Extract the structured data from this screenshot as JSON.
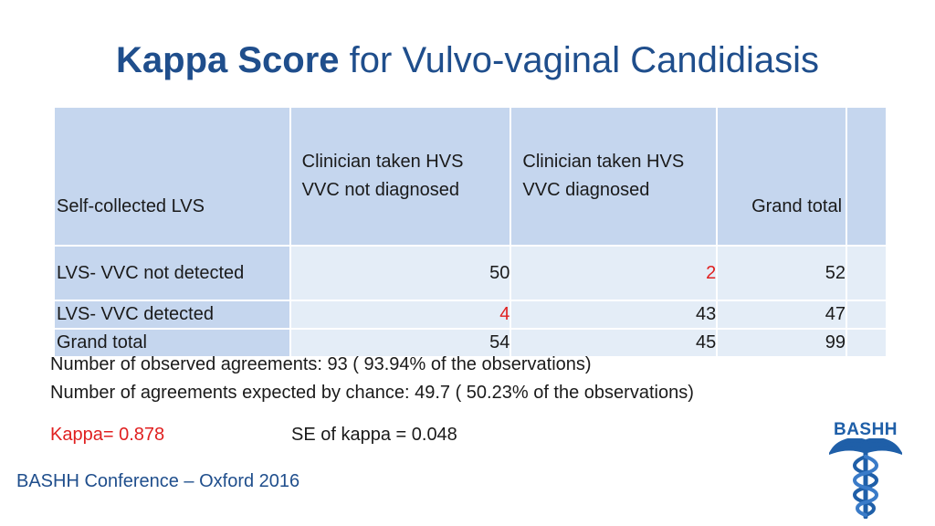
{
  "title": {
    "bold": "Kappa Score",
    "rest": " for Vulvo-vaginal Candidiasis"
  },
  "table": {
    "headers": [
      "Self-collected LVS",
      "Clinician taken HVS\nVVC not diagnosed",
      "Clinician taken HVS\nVVC diagnosed",
      "Grand total"
    ],
    "rows": [
      {
        "label": "LVS- VVC not detected",
        "values": [
          "50",
          "2",
          "52"
        ]
      },
      {
        "label": "LVS- VVC detected",
        "values": [
          "4",
          "43",
          "47"
        ]
      },
      {
        "label": "Grand total",
        "values": [
          "54",
          "45",
          "99"
        ]
      }
    ],
    "highlight_color": "#e02020"
  },
  "stats": {
    "observed": "Number of observed agreements: 93 ( 93.94% of the observations)",
    "expected": "Number of agreements expected by chance: 49.7 ( 50.23% of the observations)",
    "kappa": "Kappa= 0.878",
    "se": "SE of kappa = 0.048"
  },
  "footer": "BASHH Conference – Oxford 2016",
  "logo": {
    "text": "BASHH",
    "icon": "caduceus-icon"
  },
  "colors": {
    "title": "#1f4e8c",
    "header_bg": "#c5d6ee",
    "cell_bg": "#e4edf7",
    "logo": "#1f5fa8"
  }
}
